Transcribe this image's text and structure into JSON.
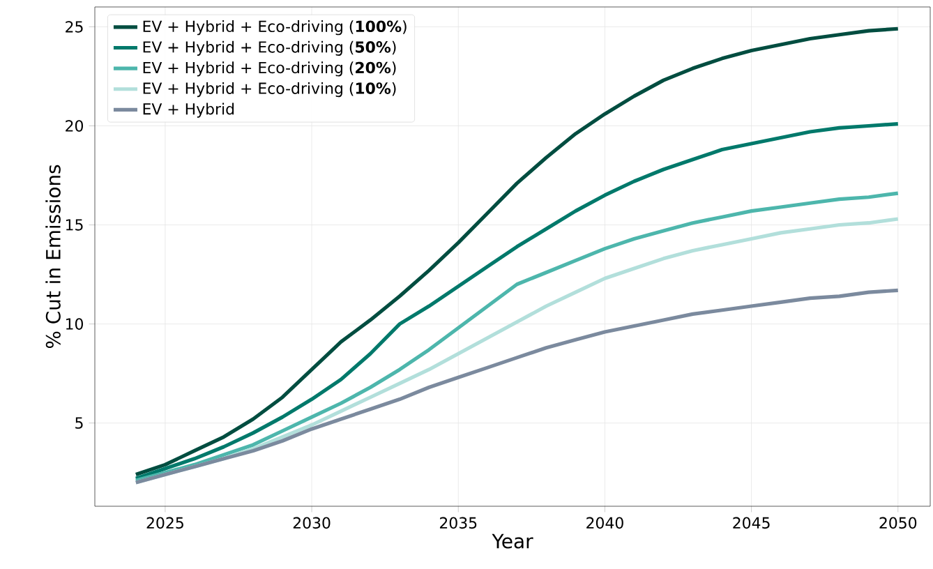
{
  "chart_data": {
    "type": "line",
    "xlabel": "Year",
    "ylabel": "% Cut in Emissions",
    "x": [
      2024,
      2025,
      2026,
      2027,
      2028,
      2029,
      2030,
      2031,
      2032,
      2033,
      2034,
      2035,
      2036,
      2037,
      2038,
      2039,
      2040,
      2041,
      2042,
      2043,
      2044,
      2045,
      2046,
      2047,
      2048,
      2049,
      2050
    ],
    "series": [
      {
        "name": "EV + Hybrid + Eco-driving (**100%**)",
        "color": "#004d40",
        "values": [
          2.4,
          2.9,
          3.6,
          4.3,
          5.2,
          6.3,
          7.7,
          9.1,
          10.2,
          11.4,
          12.7,
          14.1,
          15.6,
          17.1,
          18.4,
          19.6,
          20.6,
          21.5,
          22.3,
          22.9,
          23.4,
          23.8,
          24.1,
          24.4,
          24.6,
          24.8,
          24.9
        ]
      },
      {
        "name": "EV + Hybrid + Eco-driving (**50%**)",
        "color": "#00796b",
        "values": [
          2.2,
          2.7,
          3.2,
          3.8,
          4.5,
          5.3,
          6.2,
          7.2,
          8.5,
          10.0,
          10.9,
          11.9,
          12.9,
          13.9,
          14.8,
          15.7,
          16.5,
          17.2,
          17.8,
          18.3,
          18.8,
          19.1,
          19.4,
          19.7,
          19.9,
          20.0,
          20.1
        ]
      },
      {
        "name": "EV + Hybrid + Eco-driving (**20%**)",
        "color": "#4db6ac",
        "values": [
          2.1,
          2.5,
          2.9,
          3.4,
          3.9,
          4.6,
          5.3,
          6.0,
          6.8,
          7.7,
          8.7,
          9.8,
          10.9,
          12.0,
          12.6,
          13.2,
          13.8,
          14.3,
          14.7,
          15.1,
          15.4,
          15.7,
          15.9,
          16.1,
          16.3,
          16.4,
          16.6
        ]
      },
      {
        "name": "EV + Hybrid + Eco-driving (**10%**)",
        "color": "#b2dfdb",
        "values": [
          2.0,
          2.4,
          2.8,
          3.2,
          3.7,
          4.3,
          4.9,
          5.6,
          6.3,
          7.0,
          7.7,
          8.5,
          9.3,
          10.1,
          10.9,
          11.6,
          12.3,
          12.8,
          13.3,
          13.7,
          14.0,
          14.3,
          14.6,
          14.8,
          15.0,
          15.1,
          15.3
        ]
      },
      {
        "name": "EV + Hybrid",
        "color": "#7b8a9e",
        "values": [
          2.0,
          2.4,
          2.8,
          3.2,
          3.6,
          4.1,
          4.7,
          5.2,
          5.7,
          6.2,
          6.8,
          7.3,
          7.8,
          8.3,
          8.8,
          9.2,
          9.6,
          9.9,
          10.2,
          10.5,
          10.7,
          10.9,
          11.1,
          11.3,
          11.4,
          11.6,
          11.7
        ]
      }
    ],
    "xlim": [
      2022.6,
      2051.1
    ],
    "ylim": [
      0.8,
      26.0
    ],
    "xticks": [
      2025,
      2030,
      2035,
      2040,
      2045,
      2050
    ],
    "yticks": [
      5,
      10,
      15,
      20,
      25
    ],
    "grid": true,
    "legend": "top left",
    "marker": "none",
    "line_style": "solid"
  }
}
